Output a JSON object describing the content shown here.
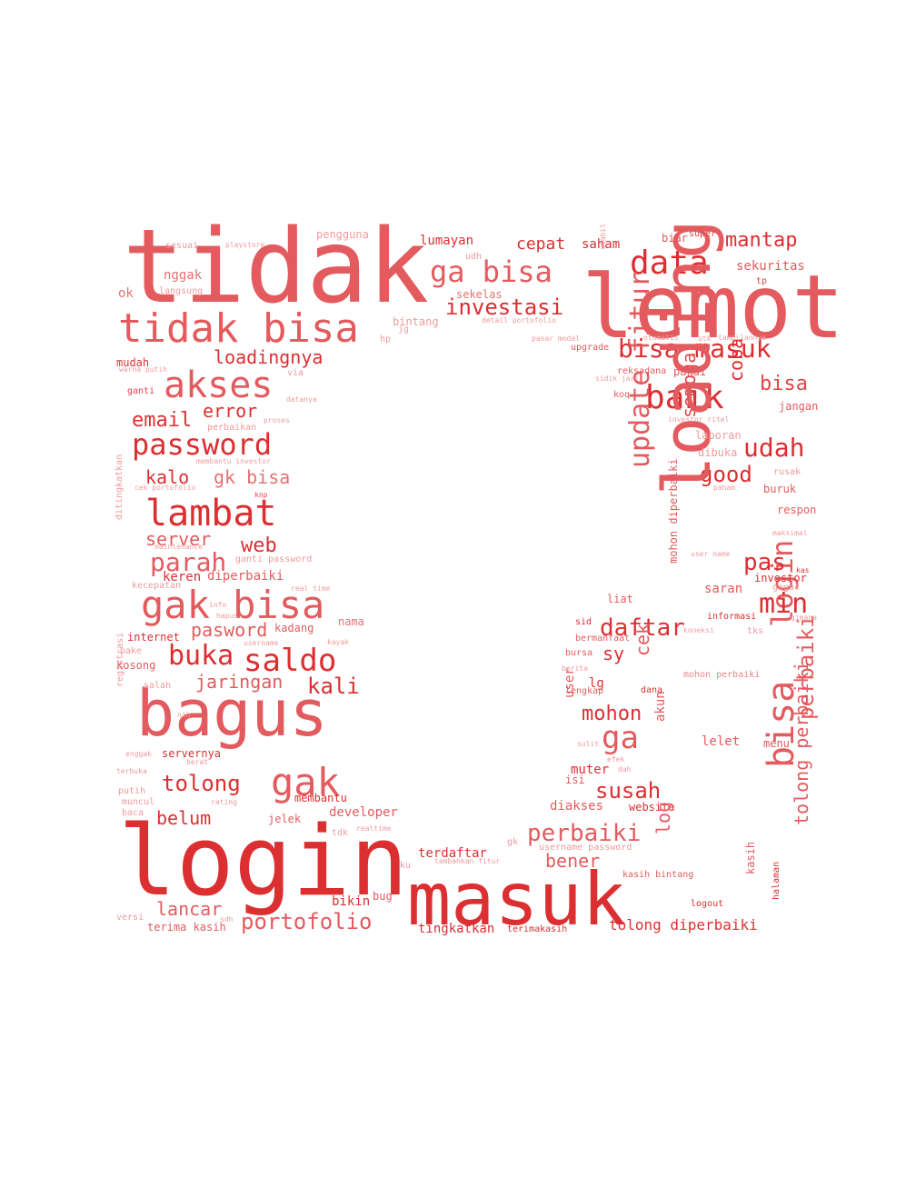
{
  "words": {
    "tidak": "tidak",
    "lemot": "lemot",
    "tidak_bisa": "tidak bisa",
    "ga_bisa": "ga bisa",
    "data": "data",
    "mantap": "mantap",
    "investasi": "investasi",
    "akses": "akses",
    "loadingnya": "loadingnya",
    "bisa_masuk": "bisa masuk",
    "baik": "baik",
    "coba": "coba",
    "bisa_r": "bisa",
    "email": "email",
    "error": "error",
    "password": "password",
    "udah": "udah",
    "update_fitur": "update fitur",
    "semoga": "semoga",
    "good": "good",
    "kalo": "kalo",
    "gk_bisa": "gk bisa",
    "lambat": "lambat",
    "loading": "loading",
    "login_r": "login",
    "web": "web",
    "server": "server",
    "parah": "parah",
    "pas": "pas",
    "gak_bisa": "gak bisa",
    "min": "min",
    "daftar": "daftar",
    "saldo": "saldo",
    "buka": "buka",
    "pasword": "pasword",
    "kali": "kali",
    "jaringan": "jaringan",
    "bagus": "bagus",
    "mohon": "mohon",
    "ga": "ga",
    "gak": "gak",
    "tolong": "tolong",
    "susah": "susah",
    "bisa_v": "bisa",
    "perbaiki_v": "perbaiki",
    "tolong_perbaiki": "tolong perbaiki",
    "login": "login",
    "masuk": "masuk",
    "perbaiki": "perbaiki",
    "bener": "bener",
    "belum": "belum",
    "lancar": "lancar",
    "portofolio": "portofolio",
    "tolong_diperbaiki": "tolong diperbaiki",
    "terdaftar": "terdaftar",
    "tingkatkan": "tingkatkan",
    "cepat": "cepat",
    "saham": "saham",
    "lumayan": "lumayan",
    "sekuritas": "sekuritas",
    "sekelas": "sekelas",
    "nggak": "nggak",
    "langsung": "langsung",
    "ok": "ok",
    "sesuai": "sesuai",
    "playstore": "playstore",
    "pengguna": "pengguna",
    "bintang": "bintang",
    "udh": "udh",
    "mudah": "mudah",
    "ganti": "ganti",
    "via": "via",
    "hp": "hp",
    "upgrade": "upgrade",
    "reksadana": "reksadana",
    "pakai": "pakai",
    "diperbaiki": "diperbaiki",
    "keren": "keren",
    "internet": "internet",
    "kadang": "kadang",
    "nama": "nama",
    "sy": "sy",
    "cek": "cek",
    "lg": "lg",
    "akun": "akun",
    "muter": "muter",
    "website": "website",
    "diakses": "diakses",
    "log": "log",
    "bikin": "bikin",
    "bug": "bug",
    "terima_kasih": "terima kasih",
    "jelek": "jelek",
    "developer": "developer",
    "membantu": "membantu",
    "servernya": "servernya",
    "lelet": "lelet",
    "saran": "saran",
    "investor": "investor",
    "mohon_diperbaiki": "mohon diperbaiki",
    "mohon_perbaiki": "mohon perbaiki",
    "koneksi": "koneksi",
    "informasi": "informasi",
    "dibuka": "dibuka",
    "laporan": "laporan",
    "buruk": "buruk",
    "respon": "respon",
    "jangan": "jangan",
    "logout": "logout",
    "kasih_bintang": "kasih bintang",
    "halaman": "halaman",
    "terimakasih": "terimakasih",
    "biar": "biar",
    "super": "super",
    "tp": "tp",
    "detail_portofolio": "detail portofolio",
    "stabil": "stabil",
    "gagal": "gagal",
    "ditingkatkan": "ditingkatkan",
    "registrasi": "registrasi",
    "kosong": "kosong",
    "pake": "pake",
    "salah": "salah",
    "putih": "putih",
    "muncul": "muncul",
    "baca": "baca",
    "versi": "versi",
    "sdh": "sdh",
    "tdk": "tdk",
    "gk": "gk",
    "ku": "ku",
    "user": "user",
    "isi": "isi",
    "dah": "dah",
    "sulit": "sulit",
    "berita": "berita",
    "lengkap": "lengkap",
    "dana": "dana",
    "bursa": "bursa",
    "sid": "sid",
    "liat": "liat",
    "bermanfaat": "bermanfaat",
    "koq": "koq",
    "sidik_jari": "sidik jari",
    "menu": "menu",
    "rusak": "rusak",
    "paham": "paham",
    "kas": "kas",
    "gimana": "gimana",
    "proses": "proses",
    "datanya": "datanya",
    "perbaikan": "perbaikan",
    "membantu_investor": "membantu investor",
    "cek_portofolio": "cek portofolio",
    "knp": "knp",
    "maintenance": "maintenance",
    "ganti_password": "ganti password",
    "real_time": "real time",
    "kecepatan": "kecepatan",
    "info": "info",
    "hapus": "hapus",
    "username": "username",
    "kayak": "kayak",
    "nih": "nih",
    "enggak": "enggak",
    "rating": "rating",
    "realtime": "realtime",
    "username_password": "username password",
    "tambahkan_fitur": "tambahkan fitur",
    "kasih": "kasih",
    "user_name": "user name",
    "maksimal": "maksimal",
    "tks": "tks",
    "investor_ritel": "investor ritel",
    "utk": "utk",
    "tampilannya": "tampilannya",
    "otomatis": "otomatis",
    "jg": "jg",
    "efek": "efek",
    "berat": "berat",
    "warna_putih": "warna putih",
    "terbuka": "terbuka",
    "pasar_modal": "pasar modal"
  },
  "palette": [
    "#d7191c",
    "#dc2f32",
    "#e04548",
    "#e35b5e",
    "#e77073",
    "#ea8588",
    "#ee9b9d",
    "#f1b0b2"
  ]
}
